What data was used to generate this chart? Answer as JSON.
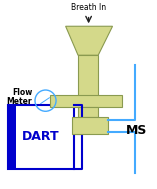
{
  "fig_width": 1.57,
  "fig_height": 1.89,
  "dpi": 100,
  "bg_color": "#ffffff",
  "olive_fill": "#d4d98a",
  "olive_edge": "#8a9a50",
  "blue_dark": "#0000cc",
  "blue_light": "#44aaff",
  "dart_label": "DART",
  "ms_label": "MS",
  "breath_label": "Breath In",
  "flow_label1": "Flow",
  "flow_label2": "Meter",
  "arrow_color": "#222222"
}
